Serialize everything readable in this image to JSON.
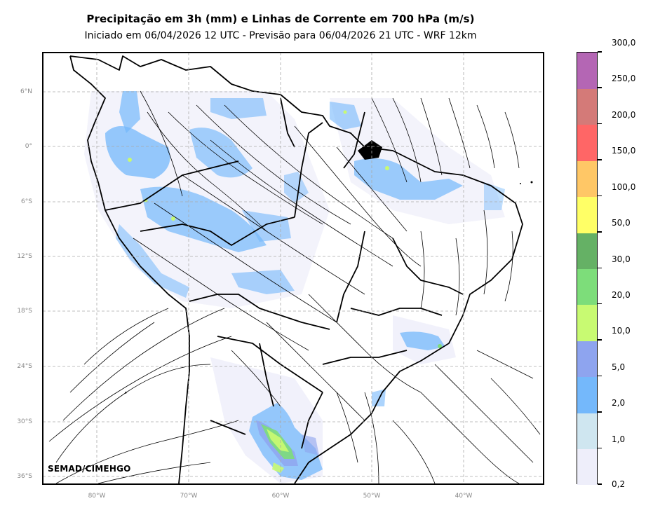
{
  "title": "Precipitação em 3h (mm) e Linhas de Corrente em 700 hPa (m/s)",
  "subtitle": "Iniciado em 06/04/2026 12 UTC - Previsão para 06/04/2026 21 UTC - WRF 12km",
  "credit": "SEMAD/CIMEHGO",
  "map": {
    "lat_labels": [
      "6°N",
      "0°",
      "6°S",
      "12°S",
      "18°S",
      "24°S",
      "30°S",
      "36°S"
    ],
    "lon_labels": [
      "80°W",
      "70°W",
      "60°W",
      "50°W",
      "40°W"
    ],
    "gridlines": true
  },
  "colorbar": {
    "labels": [
      "0,2",
      "1,0",
      "2,0",
      "5,0",
      "10,0",
      "20,0",
      "30,0",
      "50,0",
      "100,0",
      "150,0",
      "200,0",
      "250,0",
      "300,0"
    ],
    "colors": [
      "#eeeefa",
      "#cfe6f0",
      "#74b8fb",
      "#8ea4ef",
      "#c8fa72",
      "#7ddd7a",
      "#65b165",
      "#ffff66",
      "#ffc766",
      "#ff6666",
      "#d47a78",
      "#b466b4"
    ]
  }
}
